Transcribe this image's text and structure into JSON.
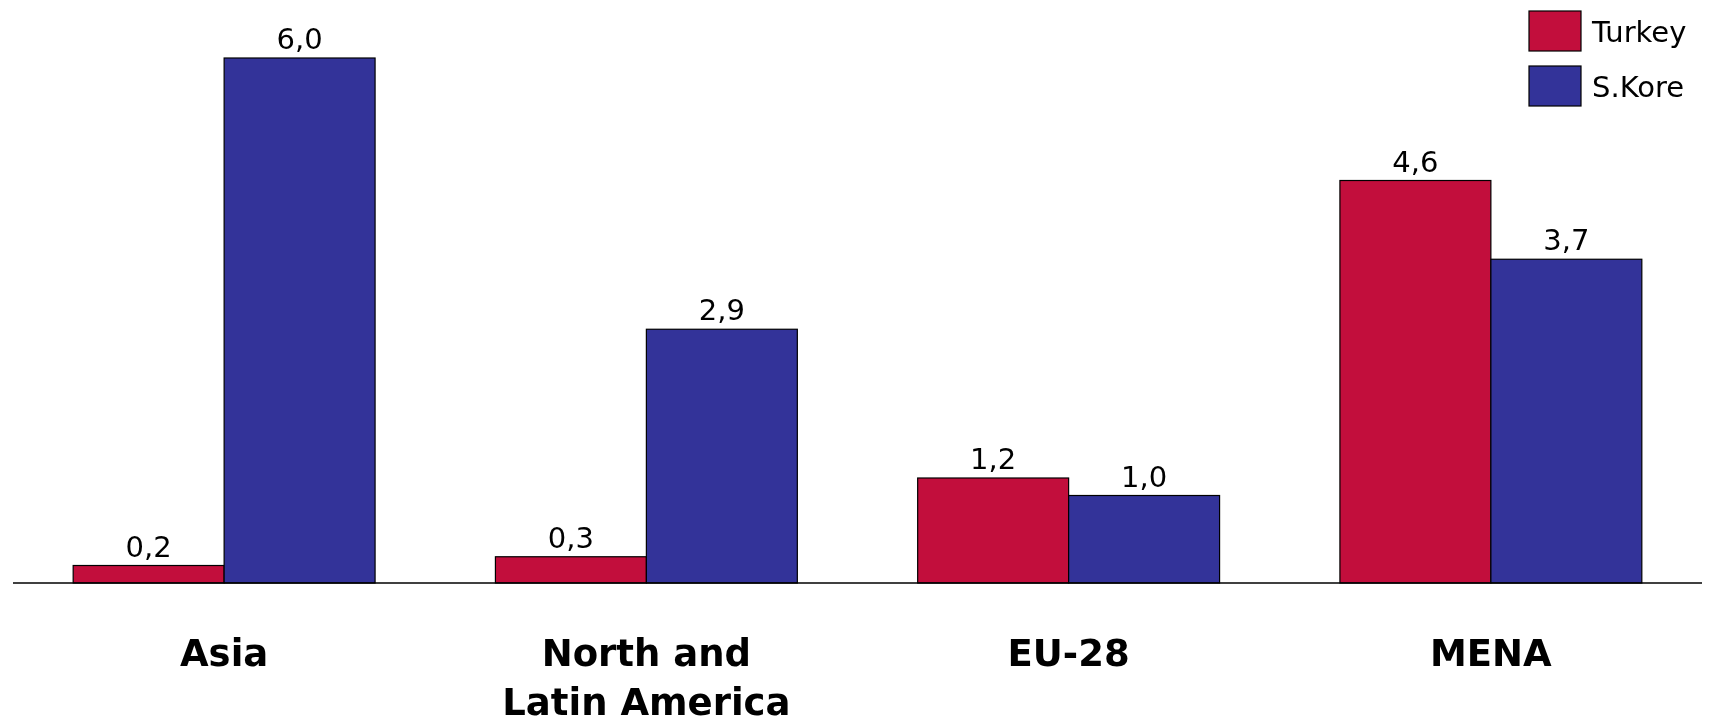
{
  "chart_data": {
    "type": "bar",
    "categories": [
      "Asia",
      "North and Latin America",
      "EU-28",
      "MENA"
    ],
    "series": [
      {
        "name": "Turkey",
        "color": "#c20e3c",
        "values": [
          0.2,
          0.3,
          1.2,
          4.6
        ],
        "value_labels": [
          "0,2",
          "0,3",
          "1,2",
          "4,6"
        ]
      },
      {
        "name": "S.Kore",
        "color": "#333399",
        "values": [
          6.0,
          2.9,
          1.0,
          3.7
        ],
        "value_labels": [
          "6,0",
          "2,9",
          "1,0",
          "3,7"
        ]
      }
    ],
    "legend": "top right",
    "tick_labels": "x"
  }
}
